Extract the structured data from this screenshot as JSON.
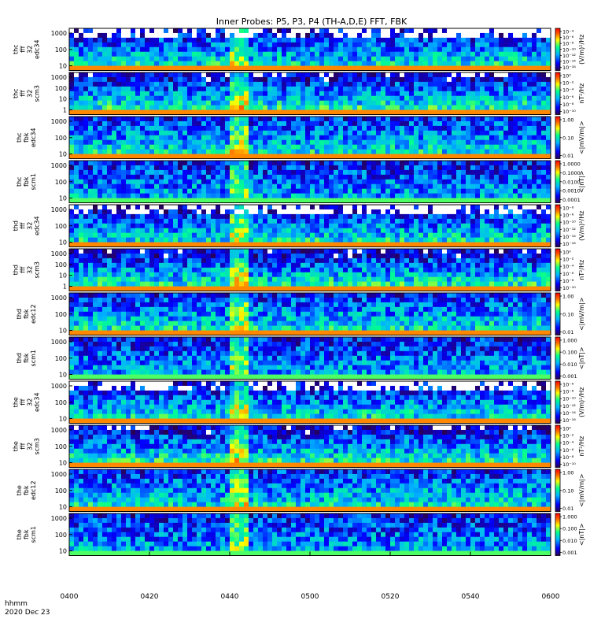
{
  "figure": {
    "title": "Inner Probes: P5, P3, P4 (TH-A,D,E) FFT, FBK",
    "footer_line1": "hhmm",
    "footer_line2": "2020 Dec 23"
  },
  "chart_data": {
    "type": "heatmap",
    "x_axis": {
      "ticks": [
        "0400",
        "0420",
        "0440",
        "0500",
        "0520",
        "0540",
        "0600"
      ],
      "range": [
        "04:00",
        "06:00"
      ],
      "label": "hhmm"
    },
    "colormap": [
      "#2a0050",
      "#0000ff",
      "#00b4ff",
      "#00ff90",
      "#ffff00",
      "#ff6a00",
      "#ff0000"
    ],
    "panels": [
      {
        "label": [
          "thc",
          "fff",
          "32",
          "edc34"
        ],
        "yticks": [
          "1000",
          "100",
          "10"
        ],
        "unit": "(V/m)²/Hz",
        "cbar_ticks": [
          "10⁻⁴",
          "10⁻⁶",
          "10⁻⁸",
          "10⁻¹⁰",
          "10⁻¹²",
          "10⁻¹⁴",
          "10⁻¹⁶"
        ],
        "kind": "fff_e"
      },
      {
        "label": [
          "thc",
          "fff",
          "32",
          "scm3"
        ],
        "yticks": [
          "1000",
          "100",
          "10",
          "1"
        ],
        "unit": "nT²/Hz",
        "cbar_ticks": [
          "10⁰",
          "10⁻²",
          "10⁻⁴",
          "10⁻⁶",
          "10⁻⁸",
          "10⁻¹⁰"
        ],
        "kind": "fff_b"
      },
      {
        "label": [
          "thc",
          "fbk",
          "edc34"
        ],
        "yticks": [
          "1000",
          "100",
          "10"
        ],
        "unit": "<|mV/m|>",
        "cbar_ticks": [
          "1.00",
          "0.10",
          "0.01"
        ],
        "kind": "fbk_e"
      },
      {
        "label": [
          "thc",
          "fbk",
          "scm1"
        ],
        "yticks": [
          "1000",
          "100",
          "10"
        ],
        "unit": "<|nT|>",
        "cbar_ticks": [
          "1.0000",
          "0.1000",
          "0.0100",
          "0.0010",
          "0.0001"
        ],
        "kind": "fbk_b"
      },
      {
        "label": [
          "thd",
          "fff",
          "32",
          "edc34"
        ],
        "yticks": [
          "1000",
          "100",
          "10"
        ],
        "unit": "(V/m)²/Hz",
        "cbar_ticks": [
          "10⁻⁶",
          "10⁻⁸",
          "10⁻¹⁰",
          "10⁻¹²",
          "10⁻¹⁴",
          "10⁻¹⁶"
        ],
        "kind": "fff_e"
      },
      {
        "label": [
          "thd",
          "fff",
          "32",
          "scm3"
        ],
        "yticks": [
          "1000",
          "100",
          "10",
          "1"
        ],
        "unit": "nT²/Hz",
        "cbar_ticks": [
          "10⁰",
          "10⁻²",
          "10⁻⁴",
          "10⁻⁶",
          "10⁻⁸",
          "10⁻¹⁰"
        ],
        "kind": "fff_b"
      },
      {
        "label": [
          "thd",
          "fbk",
          "edc12"
        ],
        "yticks": [
          "1000",
          "100",
          "10"
        ],
        "unit": "<|mV/m|>",
        "cbar_ticks": [
          "1.00",
          "0.10",
          "0.01"
        ],
        "kind": "fbk_e"
      },
      {
        "label": [
          "thd",
          "fbk",
          "scm1"
        ],
        "yticks": [
          "1000",
          "100",
          "10"
        ],
        "unit": "<|nT|>",
        "cbar_ticks": [
          "1.000",
          "0.100",
          "0.010",
          "0.001"
        ],
        "kind": "fbk_b"
      },
      {
        "label": [
          "the",
          "fff",
          "32",
          "edc34"
        ],
        "yticks": [
          "1000",
          "100",
          "10"
        ],
        "unit": "(V/m)²/Hz",
        "cbar_ticks": [
          "10⁻⁶",
          "10⁻⁸",
          "10⁻¹⁰",
          "10⁻¹²",
          "10⁻¹⁴",
          "10⁻¹⁶"
        ],
        "kind": "fff_e"
      },
      {
        "label": [
          "the",
          "fff",
          "32",
          "scm3"
        ],
        "yticks": [
          "1000",
          "100",
          "10"
        ],
        "unit": "nT²/Hz",
        "cbar_ticks": [
          "10⁰",
          "10⁻²",
          "10⁻⁴",
          "10⁻⁶",
          "10⁻⁸",
          "10⁻¹⁰"
        ],
        "kind": "fff_b"
      },
      {
        "label": [
          "the",
          "fbk",
          "edc12"
        ],
        "yticks": [
          "1000",
          "100",
          "10"
        ],
        "unit": "<|mV/m|>",
        "cbar_ticks": [
          "1.00",
          "0.10",
          "0.01"
        ],
        "kind": "fbk_e"
      },
      {
        "label": [
          "the",
          "fbk",
          "scm1"
        ],
        "yticks": [
          "1000",
          "100",
          "10"
        ],
        "unit": "<|nT|>",
        "cbar_ticks": [
          "1.000",
          "0.100",
          "0.010",
          "0.001"
        ],
        "kind": "fbk_b"
      }
    ]
  }
}
